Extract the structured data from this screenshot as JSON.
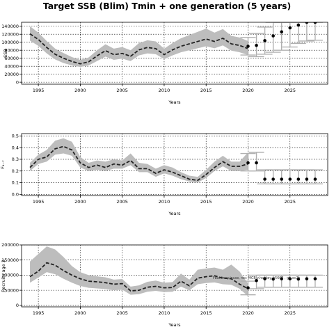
{
  "figure_title": "Target SSB (Blim) Tmin + one generation (5 years)",
  "colors": {
    "band": "#bdbdbd",
    "median": "#222222",
    "points": "#000000",
    "whisker": "#b0b0b0",
    "grid": "#000000"
  },
  "chart_data": [
    {
      "type": "line",
      "name": "ssb",
      "ylabel": "SSB",
      "xlabel": "Years",
      "xlim": [
        1993,
        2029.5
      ],
      "ylim": [
        -5000,
        150000
      ],
      "xticks": [
        1995,
        2000,
        2005,
        2010,
        2015,
        2020,
        2025
      ],
      "xtick_labels": [
        "1995",
        "2000",
        "2005",
        "2010",
        "2015",
        "2020",
        "2025"
      ],
      "yticks": [
        0,
        20000,
        40000,
        60000,
        80000,
        100000,
        120000,
        140000
      ],
      "ytick_labels": [
        "0",
        "20000",
        "40000",
        "60000",
        "80000",
        "100000",
        "120000",
        "140000"
      ],
      "grid": true,
      "history": {
        "x": [
          1994,
          1995,
          1996,
          1997,
          1998,
          1999,
          2000,
          2001,
          2002,
          2003,
          2004,
          2005,
          2006,
          2007,
          2008,
          2009,
          2010,
          2011,
          2012,
          2013,
          2014,
          2015,
          2016,
          2017,
          2018,
          2019,
          2020
        ],
        "median": [
          121000,
          107000,
          87000,
          70000,
          60000,
          52000,
          46000,
          51000,
          66000,
          79000,
          69000,
          72000,
          65000,
          81000,
          87000,
          84000,
          69000,
          81000,
          90000,
          96000,
          102000,
          108000,
          102000,
          110000,
          96000,
          92000,
          84000
        ],
        "lower": [
          104000,
          91000,
          72000,
          57000,
          48000,
          42000,
          38000,
          42000,
          53000,
          64000,
          56000,
          59000,
          53000,
          67000,
          72000,
          70000,
          58000,
          67000,
          75000,
          80000,
          85000,
          90000,
          85000,
          92000,
          79000,
          75000,
          68000
        ],
        "upper": [
          140000,
          124000,
          103000,
          84000,
          73000,
          63000,
          56000,
          62000,
          80000,
          95000,
          84000,
          88000,
          80000,
          98000,
          105000,
          102000,
          84000,
          98000,
          110000,
          118000,
          126000,
          134000,
          124000,
          133000,
          116000,
          112000,
          103000
        ]
      },
      "projection": {
        "x": [
          2020,
          2021,
          2022,
          2023,
          2024,
          2025,
          2026,
          2027,
          2028
        ],
        "median": [
          90000,
          92000,
          104000,
          116000,
          126000,
          136000,
          143000,
          150000,
          150000
        ],
        "lower": [
          68000,
          64000,
          70000,
          75000,
          80000,
          88000,
          97000,
          103000,
          105000
        ],
        "upper": [
          112000,
          122000,
          138000,
          150000,
          150000,
          150000,
          150000,
          150000,
          150000
        ]
      }
    },
    {
      "type": "line",
      "name": "fbar",
      "ylabel": "F₄₋₇",
      "xlabel": "Years",
      "xlim": [
        1993,
        2029.5
      ],
      "ylim": [
        -0.01,
        0.52
      ],
      "xticks": [
        1995,
        2000,
        2005,
        2010,
        2015,
        2020,
        2025
      ],
      "xtick_labels": [
        "1995",
        "2000",
        "2005",
        "2010",
        "2015",
        "2020",
        "2025"
      ],
      "yticks": [
        0.0,
        0.1,
        0.2,
        0.3,
        0.4,
        0.5
      ],
      "ytick_labels": [
        "0.0",
        "0.1",
        "0.2",
        "0.3",
        "0.4",
        "0.5"
      ],
      "grid": true,
      "history": {
        "x": [
          1994,
          1995,
          1996,
          1997,
          1998,
          1999,
          2000,
          2001,
          2002,
          2003,
          2004,
          2005,
          2006,
          2007,
          2008,
          2009,
          2010,
          2011,
          2012,
          2013,
          2014,
          2015,
          2016,
          2017,
          2018,
          2019,
          2020
        ],
        "median": [
          0.23,
          0.3,
          0.32,
          0.39,
          0.41,
          0.38,
          0.27,
          0.23,
          0.25,
          0.23,
          0.26,
          0.25,
          0.29,
          0.22,
          0.22,
          0.18,
          0.21,
          0.19,
          0.16,
          0.13,
          0.12,
          0.17,
          0.23,
          0.28,
          0.24,
          0.24,
          0.26
        ],
        "lower": [
          0.2,
          0.26,
          0.28,
          0.34,
          0.35,
          0.33,
          0.23,
          0.2,
          0.21,
          0.2,
          0.22,
          0.22,
          0.25,
          0.19,
          0.19,
          0.15,
          0.18,
          0.16,
          0.13,
          0.11,
          0.1,
          0.14,
          0.2,
          0.24,
          0.2,
          0.2,
          0.21
        ],
        "upper": [
          0.27,
          0.34,
          0.38,
          0.46,
          0.48,
          0.45,
          0.32,
          0.27,
          0.29,
          0.28,
          0.3,
          0.29,
          0.35,
          0.27,
          0.26,
          0.22,
          0.25,
          0.23,
          0.19,
          0.16,
          0.15,
          0.21,
          0.28,
          0.33,
          0.28,
          0.28,
          0.36
        ]
      },
      "projection": {
        "x": [
          2020,
          2021,
          2022,
          2023,
          2024,
          2025,
          2026,
          2027,
          2028
        ],
        "median": [
          0.27,
          0.27,
          0.13,
          0.13,
          0.13,
          0.13,
          0.13,
          0.13,
          0.13
        ],
        "lower": [
          0.2,
          0.2,
          0.09,
          0.09,
          0.09,
          0.09,
          0.09,
          0.09,
          0.09
        ],
        "upper": [
          0.35,
          0.36,
          0.21,
          0.21,
          0.21,
          0.21,
          0.21,
          0.21,
          0.21
        ]
      }
    },
    {
      "type": "line",
      "name": "recruitment",
      "ylabel": "Recruits age 2",
      "xlabel": "Years",
      "xlim": [
        1993,
        2029.5
      ],
      "ylim": [
        -5000,
        200000
      ],
      "xticks": [
        1995,
        2000,
        2005,
        2010,
        2015,
        2020,
        2025
      ],
      "xtick_labels": [
        "1995",
        "2000",
        "2005",
        "2010",
        "2015",
        "2020",
        "2025"
      ],
      "yticks": [
        0,
        50000,
        100000,
        150000,
        200000
      ],
      "ytick_labels": [
        "0",
        "50000",
        "100000",
        "150000",
        "200000"
      ],
      "grid": true,
      "annotation": "Fbar.fmsy.inuse, rec: MCB v.hockey, r5663 , gt: ec2c",
      "history": {
        "x": [
          1994,
          1995,
          1996,
          1997,
          1998,
          1999,
          2000,
          2001,
          2002,
          2003,
          2004,
          2005,
          2006,
          2007,
          2008,
          2009,
          2010,
          2011,
          2012,
          2013,
          2014,
          2015,
          2016,
          2017,
          2018,
          2019,
          2020
        ],
        "median": [
          95000,
          113000,
          141000,
          133000,
          115000,
          100000,
          88000,
          80000,
          78000,
          75000,
          70000,
          72000,
          48000,
          50000,
          60000,
          63000,
          58000,
          59000,
          80000,
          65000,
          90000,
          95000,
          98000,
          90000,
          88000,
          70000,
          55000
        ],
        "lower": [
          75000,
          92000,
          110000,
          103000,
          88000,
          75000,
          64000,
          58000,
          56000,
          54000,
          50000,
          52000,
          35000,
          37000,
          45000,
          48000,
          44000,
          45000,
          62000,
          50000,
          70000,
          74000,
          76000,
          70000,
          68000,
          55000,
          30000
        ],
        "upper": [
          145000,
          170000,
          195000,
          185000,
          160000,
          130000,
          110000,
          100000,
          96000,
          93000,
          85000,
          87000,
          62000,
          66000,
          78000,
          82000,
          75000,
          77000,
          105000,
          85000,
          118000,
          122000,
          125000,
          118000,
          135000,
          112000,
          72000
        ]
      },
      "projection": {
        "x": [
          2020,
          2021,
          2022,
          2023,
          2024,
          2025,
          2026,
          2027,
          2028
        ],
        "median": [
          58000,
          82000,
          88000,
          87000,
          88000,
          88000,
          87000,
          88000,
          88000
        ],
        "lower": [
          35000,
          55000,
          60000,
          60000,
          60000,
          60000,
          60000,
          60000,
          60000
        ],
        "upper": [
          80000,
          100000,
          100000,
          100000,
          100000,
          100000,
          100000,
          100000,
          100000
        ]
      }
    }
  ]
}
